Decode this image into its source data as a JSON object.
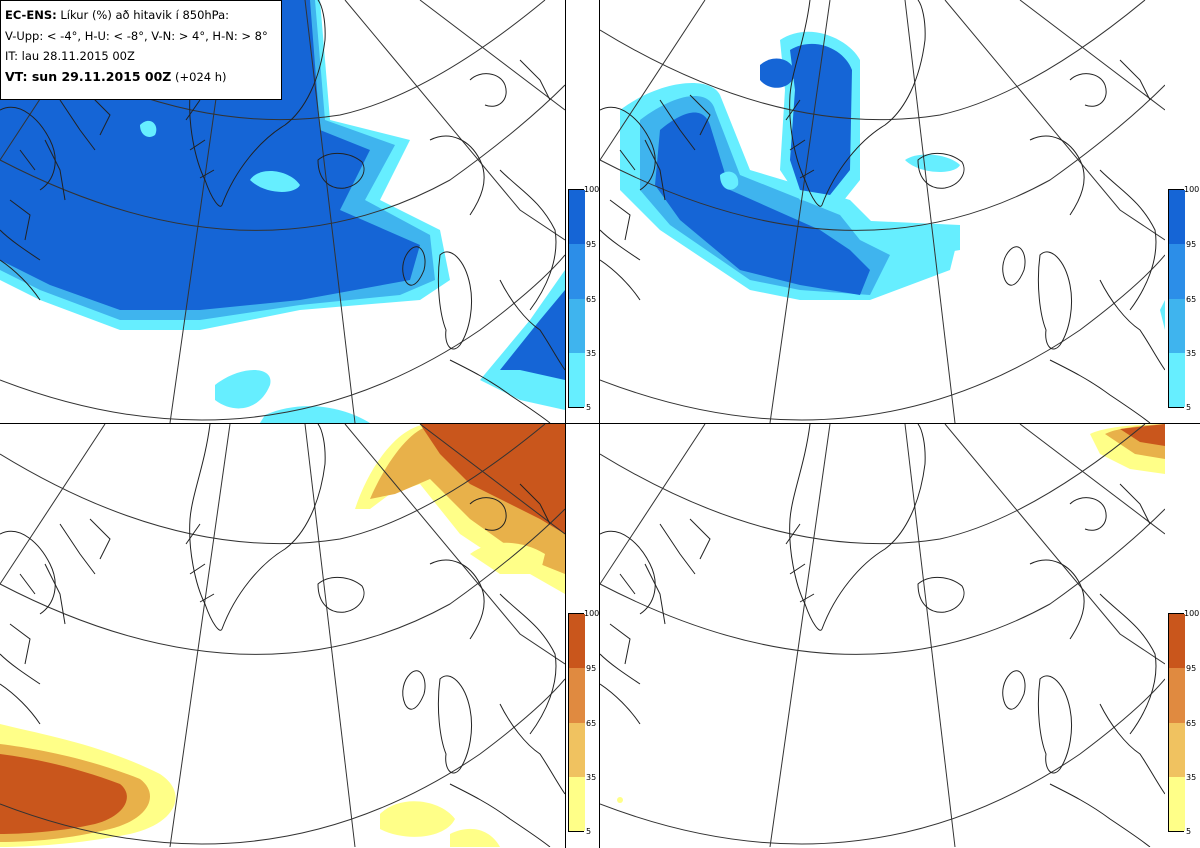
{
  "legend": {
    "model": "EC-ENS:",
    "title": "Líkur (%) að hitavik í 850hPa:",
    "thresholds": "V-Upp: < -4°, H-U: < -8°, V-N: > 4°, H-N: > 8°",
    "initial_time": "IT: lau 28.11.2015 00Z",
    "valid_label": "VT: sun 29.11.2015 00Z",
    "valid_offset": "(+024 h)"
  },
  "colorbars": {
    "ticks": [
      "100",
      "95",
      "65",
      "35",
      "5"
    ],
    "cold_colors": [
      "#66eeff",
      "#44ddff",
      "#3fb4ee",
      "#2c8ee8",
      "#1565d6"
    ],
    "warm_colors": [
      "#ffff88",
      "#f6e06a",
      "#e8b14a",
      "#d98a2c",
      "#c9561c"
    ]
  },
  "panels": [
    {
      "id": "upper-left",
      "parameter": "V-Upp"
    },
    {
      "id": "upper-right",
      "parameter": "H-U"
    },
    {
      "id": "lower-left",
      "parameter": "V-N"
    },
    {
      "id": "lower-right",
      "parameter": "H-N"
    }
  ]
}
